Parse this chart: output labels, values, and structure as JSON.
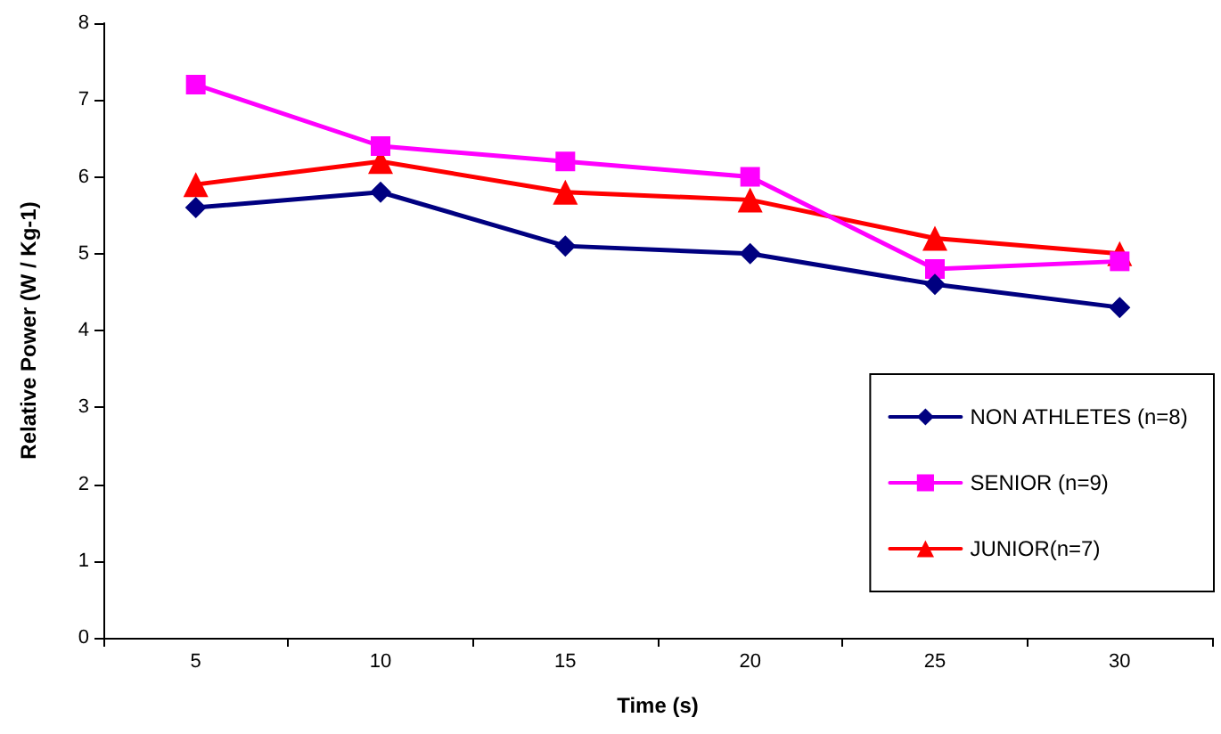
{
  "chart_data": {
    "type": "line",
    "xlabel": "Time (s)",
    "ylabel": "Relative Power (W / Kg-1)",
    "categories": [
      "5",
      "10",
      "15",
      "20",
      "25",
      "30"
    ],
    "series": [
      {
        "name": "NON ATHLETES (n=8)",
        "color": "#000080",
        "marker": "diamond",
        "values": [
          5.6,
          5.8,
          5.1,
          5.0,
          4.6,
          4.3
        ]
      },
      {
        "name": "SENIOR (n=9)",
        "color": "#ff00ff",
        "marker": "square",
        "values": [
          7.2,
          6.4,
          6.2,
          6.0,
          4.8,
          4.9
        ]
      },
      {
        "name": "JUNIOR(n=7)",
        "color": "#ff0000",
        "marker": "triangle",
        "values": [
          5.9,
          6.2,
          5.8,
          5.7,
          5.2,
          5.0
        ]
      }
    ],
    "ylim": [
      0,
      8
    ],
    "yticks": [
      0,
      1,
      2,
      3,
      4,
      5,
      6,
      7,
      8
    ],
    "grid": false,
    "legend": "bottom right",
    "line_style": "solid"
  }
}
